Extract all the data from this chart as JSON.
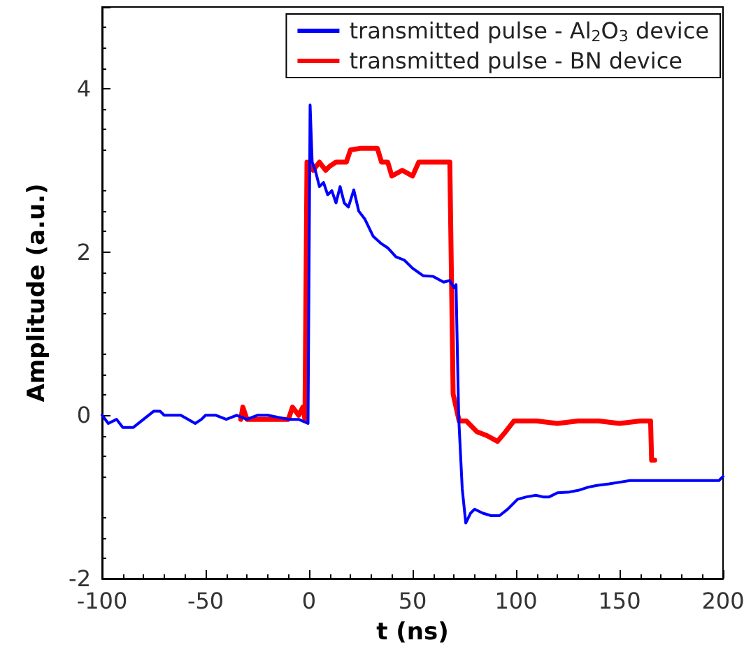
{
  "chart_data": {
    "type": "line",
    "xlabel": "t (ns)",
    "ylabel": "Amplitude (a.u.)",
    "xlim": [
      -100,
      200
    ],
    "xticks": [
      -100,
      -50,
      0,
      50,
      100,
      150,
      200
    ],
    "ylim": [
      -2,
      5
    ],
    "yticks": [
      -2,
      0,
      2,
      4,
      {
        "value": 5,
        "label": null
      }
    ],
    "grid": false,
    "legend": "top right",
    "marker": "none",
    "line_style": "solid",
    "series": [
      {
        "name": "transmitted pulse - Al$_{2}$O$_{3}$ device",
        "color": "#0000ff",
        "x": [
          -100,
          -97,
          -93,
          -90,
          -85,
          -80,
          -75,
          -72,
          -70,
          -62,
          -55,
          -52,
          -50,
          -45,
          -40,
          -35,
          -30,
          -25,
          -20,
          -10,
          -5,
          -0.5,
          0.5,
          1.5,
          3,
          5,
          7,
          9,
          11,
          13,
          15,
          17,
          19,
          21.6,
          24,
          27,
          31,
          35,
          38,
          42,
          46,
          50,
          55,
          60,
          65,
          68,
          70,
          71,
          72.3,
          74,
          75.7,
          78,
          80,
          84,
          88,
          92,
          96,
          100.7,
          105,
          109.5,
          113,
          116,
          120,
          125.7,
          130,
          135,
          139,
          145,
          150,
          155,
          170,
          185,
          198,
          200
        ],
        "values": [
          0,
          -0.1,
          -0.05,
          -0.15,
          -0.15,
          -0.05,
          0.05,
          0.05,
          0,
          0,
          -0.1,
          -0.05,
          0,
          0,
          -0.05,
          0,
          -0.05,
          0,
          0,
          -0.05,
          -0.05,
          -0.1,
          3.8,
          3.1,
          3.0,
          2.8,
          2.85,
          2.7,
          2.75,
          2.6,
          2.8,
          2.6,
          2.55,
          2.76,
          2.5,
          2.4,
          2.19,
          2.1,
          2.05,
          1.94,
          1.9,
          1.8,
          1.71,
          1.7,
          1.63,
          1.65,
          1.56,
          1.6,
          -0.03,
          -0.9,
          -1.32,
          -1.2,
          -1.15,
          -1.2,
          -1.23,
          -1.23,
          -1.15,
          -1.03,
          -1.0,
          -0.98,
          -1.0,
          -1.0,
          -0.95,
          -0.94,
          -0.92,
          -0.88,
          -0.86,
          -0.84,
          -0.82,
          -0.8,
          -0.8,
          -0.8,
          -0.8,
          -0.75
        ]
      },
      {
        "name": "transmitted pulse - BN device",
        "color": "#ff0000",
        "x": [
          -33,
          -32,
          -30,
          -25,
          -20,
          -15,
          -10,
          -8,
          -5,
          -3,
          -2,
          -1,
          2,
          5,
          8,
          10,
          13,
          15,
          18,
          20,
          25,
          30,
          33,
          35,
          38,
          40,
          45,
          50,
          53,
          60,
          68,
          69.6,
          71,
          72.5,
          76,
          81,
          86,
          91,
          95,
          99,
          110,
          120,
          130,
          140,
          150,
          160,
          165,
          165.5,
          167
        ],
        "values": [
          -0.05,
          0.1,
          -0.05,
          -0.05,
          -0.05,
          -0.05,
          -0.05,
          0.1,
          0,
          0.1,
          -0.05,
          3.1,
          3.0,
          3.1,
          3.0,
          3.05,
          3.1,
          3.1,
          3.1,
          3.25,
          3.27,
          3.27,
          3.27,
          3.1,
          3.1,
          2.93,
          3.0,
          2.93,
          3.1,
          3.1,
          3.1,
          0.26,
          0.1,
          -0.07,
          -0.07,
          -0.2,
          -0.25,
          -0.32,
          -0.2,
          -0.07,
          -0.07,
          -0.1,
          -0.07,
          -0.07,
          -0.1,
          -0.07,
          -0.07,
          -0.55,
          -0.55
        ]
      }
    ]
  }
}
